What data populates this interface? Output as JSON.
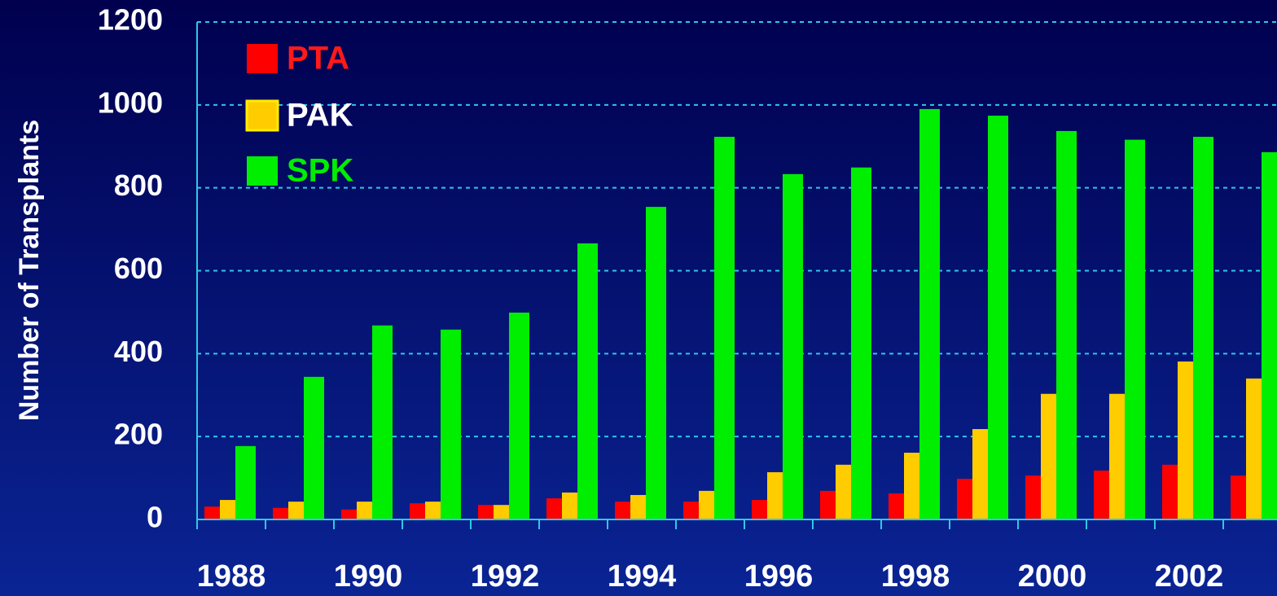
{
  "chart_data": {
    "type": "bar",
    "y_label": "Number of Transplants",
    "categories": [
      "1988",
      null,
      "1990",
      null,
      "1992",
      null,
      "1994",
      null,
      "1996",
      null,
      "1998",
      null,
      "2000",
      null,
      "2002",
      null
    ],
    "series": [
      {
        "name": "PTA",
        "color": "#ff0000",
        "legend_text_color": "#ff1a1a",
        "values": [
          31,
          28,
          24,
          39,
          35,
          51,
          43,
          43,
          47,
          69,
          63,
          98,
          106,
          118,
          132,
          106
        ]
      },
      {
        "name": "PAK",
        "color": "#ffcc00",
        "legend_text_color": "#ffffff",
        "values": [
          47,
          43,
          43,
          43,
          35,
          65,
          59,
          69,
          114,
          132,
          161,
          218,
          303,
          303,
          381,
          340
        ]
      },
      {
        "name": "SPK",
        "color": "#00ee00",
        "legend_text_color": "#00ee00",
        "values": [
          177,
          344,
          468,
          458,
          499,
          666,
          754,
          923,
          833,
          849,
          990,
          974,
          937,
          916,
          923,
          886
        ]
      }
    ],
    "ylim": [
      0,
      1200
    ],
    "yticks": [
      0,
      200,
      400,
      600,
      800,
      1000,
      1200
    ],
    "grid": true,
    "legend": "upper left"
  }
}
